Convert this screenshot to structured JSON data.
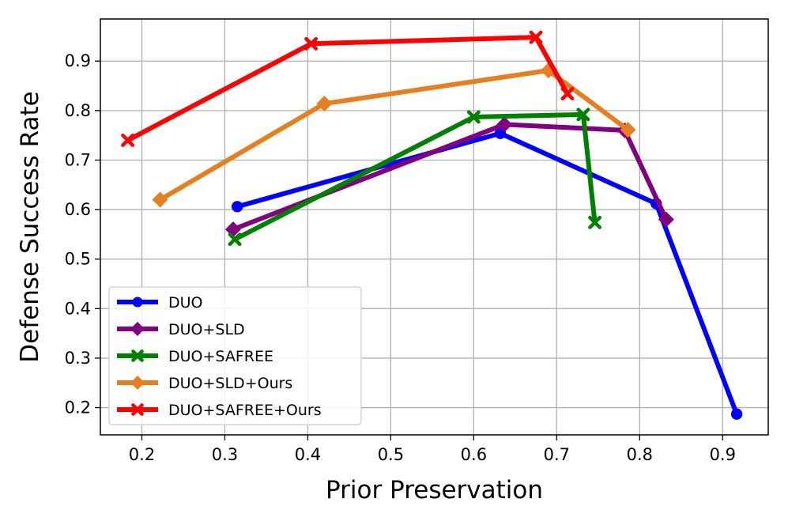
{
  "chart_data": {
    "type": "line",
    "title": "",
    "xlabel": "Prior Preservation",
    "ylabel": "Defense Success Rate",
    "xlim": [
      0.15,
      0.955
    ],
    "ylim": [
      0.145,
      0.985
    ],
    "xticks": [
      0.2,
      0.3,
      0.4,
      0.5,
      0.6,
      0.7,
      0.8,
      0.9
    ],
    "yticks": [
      0.2,
      0.3,
      0.4,
      0.5,
      0.6,
      0.7,
      0.8,
      0.9
    ],
    "grid": true,
    "legend_position": "lower-left",
    "series": [
      {
        "name": "DUO",
        "color": "#0000ff",
        "marker": "circle",
        "points": [
          [
            0.315,
            0.606
          ],
          [
            0.632,
            0.754
          ],
          [
            0.82,
            0.612
          ],
          [
            0.917,
            0.187
          ]
        ]
      },
      {
        "name": "DUO+SLD",
        "color": "#800080",
        "marker": "diamond",
        "points": [
          [
            0.31,
            0.56
          ],
          [
            0.637,
            0.772
          ],
          [
            0.782,
            0.76
          ],
          [
            0.832,
            0.58
          ]
        ]
      },
      {
        "name": "DUO+SAFREE",
        "color": "#008000",
        "marker": "x",
        "points": [
          [
            0.312,
            0.54
          ],
          [
            0.6,
            0.787
          ],
          [
            0.732,
            0.792
          ],
          [
            0.746,
            0.574
          ]
        ]
      },
      {
        "name": "DUO+SLD+Ours",
        "color": "#e67e22",
        "marker": "diamond",
        "points": [
          [
            0.222,
            0.62
          ],
          [
            0.42,
            0.814
          ],
          [
            0.69,
            0.881
          ],
          [
            0.786,
            0.761
          ]
        ]
      },
      {
        "name": "DUO+SAFREE+Ours",
        "color": "#ff0000",
        "marker": "x",
        "points": [
          [
            0.183,
            0.74
          ],
          [
            0.404,
            0.935
          ],
          [
            0.675,
            0.948
          ],
          [
            0.713,
            0.834
          ]
        ]
      }
    ]
  }
}
